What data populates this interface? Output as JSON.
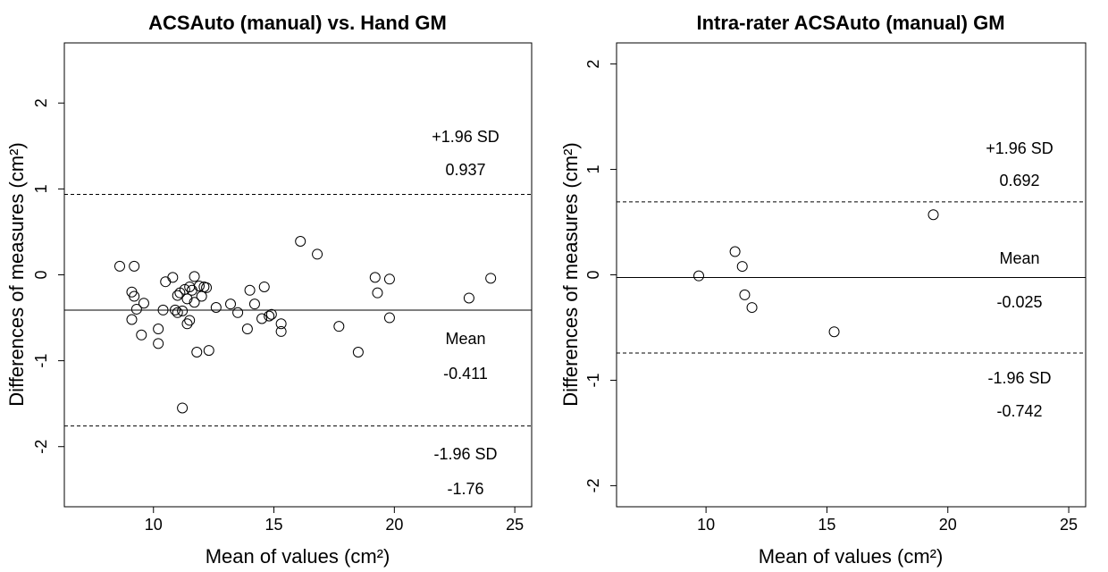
{
  "chart_data": [
    {
      "type": "scatter",
      "title": "ACSAuto (manual) vs. Hand GM",
      "xlabel": "Mean of values (cm²)",
      "ylabel": "Differences of measures (cm²)",
      "xlim": [
        6.3,
        25.7
      ],
      "ylim": [
        -2.7,
        2.7
      ],
      "xticks": [
        10,
        15,
        20,
        25
      ],
      "yticks": [
        -2,
        -1,
        0,
        1,
        2
      ],
      "grid": false,
      "points": [
        [
          8.6,
          0.1
        ],
        [
          9.2,
          0.1
        ],
        [
          9.1,
          -0.2
        ],
        [
          9.2,
          -0.25
        ],
        [
          9.1,
          -0.52
        ],
        [
          9.3,
          -0.4
        ],
        [
          9.5,
          -0.7
        ],
        [
          9.6,
          -0.33
        ],
        [
          10.2,
          -0.63
        ],
        [
          10.2,
          -0.8
        ],
        [
          10.4,
          -0.41
        ],
        [
          10.5,
          -0.08
        ],
        [
          10.8,
          -0.03
        ],
        [
          10.9,
          -0.41
        ],
        [
          11.0,
          -0.24
        ],
        [
          11.0,
          -0.44
        ],
        [
          11.1,
          -0.21
        ],
        [
          11.2,
          -0.42
        ],
        [
          11.2,
          -1.55
        ],
        [
          11.3,
          -0.17
        ],
        [
          11.4,
          -0.28
        ],
        [
          11.4,
          -0.57
        ],
        [
          11.5,
          -0.14
        ],
        [
          11.5,
          -0.53
        ],
        [
          11.6,
          -0.18
        ],
        [
          11.7,
          -0.02
        ],
        [
          11.7,
          -0.32
        ],
        [
          11.8,
          -0.9
        ],
        [
          11.9,
          -0.13
        ],
        [
          12.0,
          -0.25
        ],
        [
          12.1,
          -0.14
        ],
        [
          12.2,
          -0.15
        ],
        [
          12.3,
          -0.88
        ],
        [
          12.6,
          -0.38
        ],
        [
          13.2,
          -0.34
        ],
        [
          13.5,
          -0.44
        ],
        [
          13.9,
          -0.63
        ],
        [
          14.0,
          -0.18
        ],
        [
          14.2,
          -0.34
        ],
        [
          14.5,
          -0.51
        ],
        [
          14.6,
          -0.14
        ],
        [
          14.8,
          -0.48
        ],
        [
          14.9,
          -0.46
        ],
        [
          15.3,
          -0.57
        ],
        [
          15.3,
          -0.66
        ],
        [
          16.1,
          0.39
        ],
        [
          16.8,
          0.24
        ],
        [
          17.7,
          -0.6
        ],
        [
          18.5,
          -0.9
        ],
        [
          19.2,
          -0.03
        ],
        [
          19.3,
          -0.21
        ],
        [
          19.8,
          -0.05
        ],
        [
          19.8,
          -0.5
        ],
        [
          23.1,
          -0.27
        ],
        [
          24.0,
          -0.04
        ]
      ],
      "mean_line": -0.411,
      "upper_loa": 0.937,
      "lower_loa": -1.76,
      "annotations": {
        "upper_label": "+1.96 SD",
        "upper_value": "0.937",
        "mean_label": "Mean",
        "mean_value": "-0.411",
        "lower_label": "-1.96 SD",
        "lower_value": "-1.76"
      }
    },
    {
      "type": "scatter",
      "title": "Intra-rater ACSAuto (manual) GM",
      "xlabel": "Mean of values (cm²)",
      "ylabel": "Differences of measures (cm²)",
      "xlim": [
        6.3,
        25.7
      ],
      "ylim": [
        -2.2,
        2.2
      ],
      "xticks": [
        10,
        15,
        20,
        25
      ],
      "yticks": [
        -2,
        -1,
        0,
        1,
        2
      ],
      "grid": false,
      "points": [
        [
          9.7,
          -0.01
        ],
        [
          11.2,
          0.22
        ],
        [
          11.5,
          0.08
        ],
        [
          11.6,
          -0.19
        ],
        [
          11.9,
          -0.31
        ],
        [
          15.3,
          -0.54
        ],
        [
          19.4,
          0.57
        ]
      ],
      "mean_line": -0.025,
      "upper_loa": 0.692,
      "lower_loa": -0.742,
      "annotations": {
        "upper_label": "+1.96 SD",
        "upper_value": "0.692",
        "mean_label": "Mean",
        "mean_value": "-0.025",
        "lower_label": "-1.96 SD",
        "lower_value": "-0.742"
      }
    }
  ]
}
